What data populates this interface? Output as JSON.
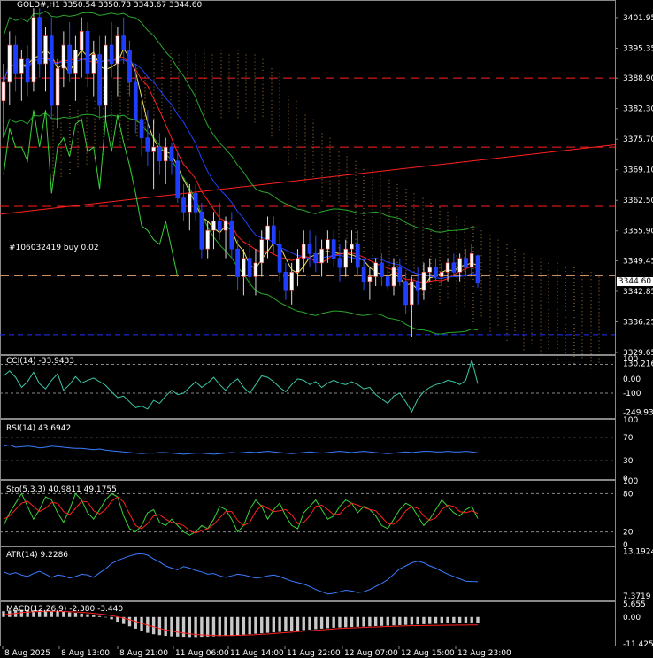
{
  "main": {
    "symbol_caption": "GOLD#,H1  3350.54 3350.73 3343.67 3344.60",
    "order_label": "#106032419 buy 0.02",
    "current_price": "3344.60",
    "price_axis": [
      "3401.95",
      "3395.35",
      "3388.90",
      "3382.30",
      "3375.70",
      "3369.10",
      "3362.50",
      "3355.90",
      "3349.45",
      "3342.85",
      "3336.25",
      "3329.65"
    ]
  },
  "cci": {
    "caption": "CCI(14) -33.9433",
    "axis": [
      "100",
      "130.2166",
      "0.00",
      "-100",
      "-249.9343"
    ]
  },
  "rsi": {
    "caption": "RSI(14) 43.6942",
    "axis": [
      "100",
      "70",
      "30",
      "0"
    ]
  },
  "sto": {
    "caption": "Sto(5,3,3) 40.9811 49.1755",
    "axis": [
      "100",
      "80",
      "20",
      "0"
    ]
  },
  "atr": {
    "caption": "ATR(14) 9.2286",
    "axis": [
      "13.1924",
      "7.3719"
    ]
  },
  "macd": {
    "caption": "MACD(12,26,9) -2.380 -3.440",
    "axis": [
      "5.655",
      "0.00",
      "-11.425"
    ]
  },
  "time_axis": [
    "8 Aug 2025",
    "8 Aug 13:00",
    "8 Aug 21:00",
    "11 Aug 06:00",
    "11 Aug 14:00",
    "11 Aug 22:00",
    "12 Aug 07:00",
    "12 Aug 15:00",
    "12 Aug 23:00"
  ],
  "colors": {
    "bull": "#ffffff",
    "bear": "#1f3dff",
    "band": "#2aa52a",
    "red": "#ff2020"
  },
  "chart_data": {
    "type": "candlestick",
    "candles": [
      {
        "o": 3384,
        "h": 3392,
        "l": 3376,
        "c": 3388
      },
      {
        "o": 3388,
        "h": 3399,
        "l": 3383,
        "c": 3396
      },
      {
        "o": 3396,
        "h": 3398,
        "l": 3386,
        "c": 3390
      },
      {
        "o": 3390,
        "h": 3395,
        "l": 3384,
        "c": 3393
      },
      {
        "o": 3393,
        "h": 3396,
        "l": 3385,
        "c": 3388
      },
      {
        "o": 3388,
        "h": 3404,
        "l": 3386,
        "c": 3402
      },
      {
        "o": 3402,
        "h": 3404,
        "l": 3389,
        "c": 3392
      },
      {
        "o": 3392,
        "h": 3400,
        "l": 3386,
        "c": 3398
      },
      {
        "o": 3398,
        "h": 3402,
        "l": 3380,
        "c": 3383
      },
      {
        "o": 3383,
        "h": 3393,
        "l": 3378,
        "c": 3391
      },
      {
        "o": 3391,
        "h": 3399,
        "l": 3387,
        "c": 3396
      },
      {
        "o": 3396,
        "h": 3401,
        "l": 3388,
        "c": 3390
      },
      {
        "o": 3390,
        "h": 3398,
        "l": 3384,
        "c": 3395
      },
      {
        "o": 3395,
        "h": 3402,
        "l": 3389,
        "c": 3399
      },
      {
        "o": 3399,
        "h": 3401,
        "l": 3387,
        "c": 3390
      },
      {
        "o": 3390,
        "h": 3397,
        "l": 3385,
        "c": 3394
      },
      {
        "o": 3394,
        "h": 3398,
        "l": 3380,
        "c": 3383
      },
      {
        "o": 3383,
        "h": 3398,
        "l": 3380,
        "c": 3396
      },
      {
        "o": 3396,
        "h": 3401,
        "l": 3389,
        "c": 3392
      },
      {
        "o": 3392,
        "h": 3400,
        "l": 3385,
        "c": 3398
      },
      {
        "o": 3398,
        "h": 3402,
        "l": 3392,
        "c": 3395
      },
      {
        "o": 3395,
        "h": 3397,
        "l": 3385,
        "c": 3388
      },
      {
        "o": 3388,
        "h": 3392,
        "l": 3377,
        "c": 3380
      },
      {
        "o": 3380,
        "h": 3384,
        "l": 3372,
        "c": 3376
      },
      {
        "o": 3376,
        "h": 3382,
        "l": 3370,
        "c": 3373
      },
      {
        "o": 3373,
        "h": 3380,
        "l": 3365,
        "c": 3374
      },
      {
        "o": 3374,
        "h": 3377,
        "l": 3368,
        "c": 3371
      },
      {
        "o": 3371,
        "h": 3376,
        "l": 3366,
        "c": 3374
      },
      {
        "o": 3374,
        "h": 3375,
        "l": 3368,
        "c": 3371
      },
      {
        "o": 3371,
        "h": 3373,
        "l": 3362,
        "c": 3363
      },
      {
        "o": 3363,
        "h": 3366,
        "l": 3358,
        "c": 3360
      },
      {
        "o": 3360,
        "h": 3366,
        "l": 3356,
        "c": 3364
      },
      {
        "o": 3364,
        "h": 3366,
        "l": 3358,
        "c": 3360
      },
      {
        "o": 3360,
        "h": 3362,
        "l": 3350,
        "c": 3352
      },
      {
        "o": 3352,
        "h": 3358,
        "l": 3350,
        "c": 3356
      },
      {
        "o": 3356,
        "h": 3360,
        "l": 3352,
        "c": 3358
      },
      {
        "o": 3358,
        "h": 3362,
        "l": 3354,
        "c": 3356
      },
      {
        "o": 3356,
        "h": 3359,
        "l": 3350,
        "c": 3358
      },
      {
        "o": 3358,
        "h": 3360,
        "l": 3350,
        "c": 3352
      },
      {
        "o": 3352,
        "h": 3354,
        "l": 3343,
        "c": 3346
      },
      {
        "o": 3346,
        "h": 3352,
        "l": 3342,
        "c": 3350
      },
      {
        "o": 3350,
        "h": 3354,
        "l": 3344,
        "c": 3346
      },
      {
        "o": 3346,
        "h": 3352,
        "l": 3342,
        "c": 3349
      },
      {
        "o": 3349,
        "h": 3356,
        "l": 3346,
        "c": 3354
      },
      {
        "o": 3354,
        "h": 3359,
        "l": 3350,
        "c": 3357
      },
      {
        "o": 3357,
        "h": 3359,
        "l": 3351,
        "c": 3353
      },
      {
        "o": 3353,
        "h": 3356,
        "l": 3345,
        "c": 3347
      },
      {
        "o": 3347,
        "h": 3349,
        "l": 3341,
        "c": 3343
      },
      {
        "o": 3343,
        "h": 3349,
        "l": 3340,
        "c": 3347
      },
      {
        "o": 3347,
        "h": 3352,
        "l": 3344,
        "c": 3350
      },
      {
        "o": 3350,
        "h": 3356,
        "l": 3347,
        "c": 3353
      },
      {
        "o": 3353,
        "h": 3356,
        "l": 3348,
        "c": 3351
      },
      {
        "o": 3351,
        "h": 3355,
        "l": 3347,
        "c": 3349
      },
      {
        "o": 3349,
        "h": 3354,
        "l": 3346,
        "c": 3352
      },
      {
        "o": 3352,
        "h": 3356,
        "l": 3349,
        "c": 3354
      },
      {
        "o": 3354,
        "h": 3356,
        "l": 3348,
        "c": 3350
      },
      {
        "o": 3350,
        "h": 3353,
        "l": 3345,
        "c": 3348
      },
      {
        "o": 3348,
        "h": 3354,
        "l": 3346,
        "c": 3352
      },
      {
        "o": 3352,
        "h": 3356,
        "l": 3349,
        "c": 3353
      },
      {
        "o": 3353,
        "h": 3356,
        "l": 3346,
        "c": 3348
      },
      {
        "o": 3348,
        "h": 3350,
        "l": 3343,
        "c": 3345
      },
      {
        "o": 3345,
        "h": 3348,
        "l": 3341,
        "c": 3346
      },
      {
        "o": 3346,
        "h": 3350,
        "l": 3344,
        "c": 3349
      },
      {
        "o": 3349,
        "h": 3351,
        "l": 3344,
        "c": 3346
      },
      {
        "o": 3346,
        "h": 3348,
        "l": 3343,
        "c": 3344
      },
      {
        "o": 3344,
        "h": 3350,
        "l": 3342,
        "c": 3348
      },
      {
        "o": 3348,
        "h": 3350,
        "l": 3344,
        "c": 3345
      },
      {
        "o": 3345,
        "h": 3347,
        "l": 3338,
        "c": 3340
      },
      {
        "o": 3340,
        "h": 3346,
        "l": 3333,
        "c": 3345
      },
      {
        "o": 3345,
        "h": 3348,
        "l": 3340,
        "c": 3343
      },
      {
        "o": 3343,
        "h": 3349,
        "l": 3341,
        "c": 3347
      },
      {
        "o": 3347,
        "h": 3350,
        "l": 3345,
        "c": 3348
      },
      {
        "o": 3348,
        "h": 3350,
        "l": 3345,
        "c": 3346
      },
      {
        "o": 3346,
        "h": 3349,
        "l": 3344,
        "c": 3347
      },
      {
        "o": 3347,
        "h": 3350,
        "l": 3345,
        "c": 3349
      },
      {
        "o": 3349,
        "h": 3351,
        "l": 3346,
        "c": 3347
      },
      {
        "o": 3347,
        "h": 3351,
        "l": 3345,
        "c": 3350
      },
      {
        "o": 3350,
        "h": 3352,
        "l": 3346,
        "c": 3348
      },
      {
        "o": 3348,
        "h": 3353,
        "l": 3346,
        "c": 3351
      },
      {
        "o": 3350.54,
        "h": 3350.73,
        "l": 3343.67,
        "c": 3344.6
      }
    ],
    "cci": [
      20,
      55,
      10,
      -60,
      -20,
      45,
      -35,
      -70,
      -10,
      35,
      -80,
      -40,
      15,
      -30,
      -10,
      5,
      -20,
      -45,
      -90,
      -130,
      -120,
      -160,
      -200,
      -190,
      -210,
      -150,
      -170,
      -120,
      -80,
      -110,
      -100,
      -60,
      -20,
      -60,
      -30,
      10,
      -40,
      -80,
      -30,
      0,
      -60,
      -100,
      -40,
      20,
      10,
      -20,
      -60,
      -90,
      -40,
      0,
      -10,
      -40,
      -20,
      -60,
      -30,
      -10,
      -30,
      -40,
      -20,
      -40,
      -70,
      -60,
      -110,
      -140,
      -170,
      -120,
      -100,
      -160,
      -230,
      -140,
      -90,
      -60,
      -40,
      -30,
      -10,
      -20,
      -40,
      -10,
      130,
      -34
    ],
    "rsi": [
      55,
      57,
      53,
      54,
      55,
      54,
      52,
      53,
      55,
      54,
      53,
      52,
      51,
      51,
      50,
      49,
      50,
      48,
      47,
      46,
      45,
      44,
      43,
      42,
      43,
      43,
      44,
      44,
      43,
      42,
      41,
      42,
      43,
      43,
      42,
      41,
      42,
      43,
      44,
      43,
      44,
      45,
      44,
      45,
      46,
      45,
      44,
      43,
      42,
      43,
      44,
      45,
      44,
      43,
      44,
      45,
      46,
      45,
      44,
      45,
      46,
      45,
      44,
      43,
      42,
      43,
      44,
      45,
      44,
      45,
      46,
      46,
      45,
      45,
      46,
      45,
      45,
      46,
      45,
      43.7
    ],
    "sto_k": [
      30,
      50,
      65,
      80,
      60,
      40,
      55,
      75,
      70,
      50,
      35,
      55,
      80,
      70,
      50,
      40,
      55,
      70,
      80,
      75,
      45,
      25,
      20,
      30,
      50,
      55,
      35,
      30,
      40,
      30,
      20,
      15,
      20,
      30,
      25,
      40,
      60,
      55,
      40,
      20,
      30,
      55,
      70,
      60,
      40,
      55,
      65,
      45,
      30,
      25,
      50,
      60,
      70,
      55,
      40,
      45,
      60,
      70,
      65,
      50,
      60,
      55,
      45,
      30,
      25,
      40,
      55,
      65,
      60,
      45,
      30,
      40,
      55,
      70,
      60,
      50,
      45,
      55,
      60,
      41
    ],
    "sto_d": [
      40,
      45,
      55,
      65,
      68,
      60,
      52,
      57,
      66,
      65,
      52,
      47,
      57,
      68,
      67,
      53,
      48,
      55,
      68,
      75,
      67,
      48,
      30,
      25,
      33,
      45,
      47,
      40,
      35,
      33,
      30,
      22,
      18,
      22,
      25,
      32,
      42,
      52,
      52,
      38,
      30,
      35,
      52,
      62,
      57,
      52,
      53,
      55,
      47,
      33,
      35,
      45,
      60,
      62,
      55,
      47,
      48,
      58,
      65,
      62,
      58,
      55,
      53,
      43,
      33,
      32,
      40,
      53,
      60,
      57,
      45,
      38,
      42,
      55,
      62,
      60,
      52,
      50,
      53,
      49
    ],
    "atr": [
      10.5,
      10.2,
      10.4,
      10.1,
      9.9,
      10.3,
      10.6,
      10.2,
      9.8,
      10.1,
      10.0,
      9.7,
      9.9,
      10.2,
      10.1,
      9.8,
      10.4,
      10.9,
      11.6,
      12.0,
      12.3,
      12.6,
      12.8,
      12.9,
      12.7,
      12.2,
      11.8,
      11.3,
      11.0,
      10.8,
      11.2,
      11.0,
      10.7,
      10.5,
      10.2,
      10.3,
      10.0,
      9.8,
      10.0,
      10.2,
      10.1,
      9.9,
      9.7,
      9.8,
      10.0,
      10.1,
      9.9,
      9.6,
      9.3,
      9.1,
      8.9,
      8.6,
      8.2,
      7.9,
      7.6,
      7.7,
      7.9,
      8.1,
      8.0,
      7.8,
      7.9,
      8.2,
      8.6,
      9.0,
      9.5,
      10.2,
      10.9,
      11.3,
      11.7,
      11.9,
      11.7,
      11.3,
      11.0,
      10.6,
      10.2,
      9.9,
      9.6,
      9.3,
      9.25,
      9.23
    ],
    "macd_hist": [
      2.5,
      2.8,
      3.0,
      3.1,
      3.0,
      2.9,
      2.8,
      2.7,
      2.6,
      2.4,
      2.2,
      2.0,
      1.8,
      1.5,
      1.2,
      0.8,
      0.4,
      -0.2,
      -1.0,
      -2.0,
      -3.0,
      -4.0,
      -5.0,
      -6.0,
      -6.8,
      -7.4,
      -7.8,
      -8.1,
      -8.3,
      -8.4,
      -8.5,
      -8.6,
      -8.6,
      -8.5,
      -8.4,
      -8.3,
      -8.2,
      -8.1,
      -8.0,
      -7.8,
      -7.6,
      -7.4,
      -7.2,
      -7.0,
      -6.8,
      -6.6,
      -6.4,
      -6.2,
      -6.0,
      -5.8,
      -5.6,
      -5.4,
      -5.2,
      -5.0,
      -4.8,
      -4.6,
      -4.5,
      -4.4,
      -4.3,
      -4.2,
      -4.1,
      -4.0,
      -3.9,
      -3.8,
      -3.7,
      -3.6,
      -3.5,
      -3.4,
      -3.3,
      -3.2,
      -3.1,
      -3.0,
      -2.9,
      -2.8,
      -2.7,
      -2.6,
      -2.5,
      -2.45,
      -2.4,
      -2.38
    ],
    "macd_signal": [
      1.0,
      1.3,
      1.6,
      1.9,
      2.1,
      2.3,
      2.4,
      2.5,
      2.5,
      2.5,
      2.4,
      2.3,
      2.2,
      2.0,
      1.8,
      1.6,
      1.3,
      1.0,
      0.6,
      0.1,
      -0.5,
      -1.2,
      -1.9,
      -2.7,
      -3.5,
      -4.2,
      -4.9,
      -5.5,
      -6.0,
      -6.5,
      -6.9,
      -7.2,
      -7.5,
      -7.7,
      -7.8,
      -7.9,
      -8.0,
      -8.0,
      -8.0,
      -7.9,
      -7.8,
      -7.7,
      -7.6,
      -7.4,
      -7.3,
      -7.1,
      -6.9,
      -6.7,
      -6.5,
      -6.3,
      -6.1,
      -5.9,
      -5.7,
      -5.5,
      -5.3,
      -5.1,
      -4.9,
      -4.8,
      -4.7,
      -4.6,
      -4.5,
      -4.4,
      -4.3,
      -4.2,
      -4.1,
      -4.0,
      -3.9,
      -3.8,
      -3.75,
      -3.7,
      -3.65,
      -3.6,
      -3.58,
      -3.55,
      -3.52,
      -3.5,
      -3.48,
      -3.46,
      -3.45,
      -3.44
    ]
  }
}
